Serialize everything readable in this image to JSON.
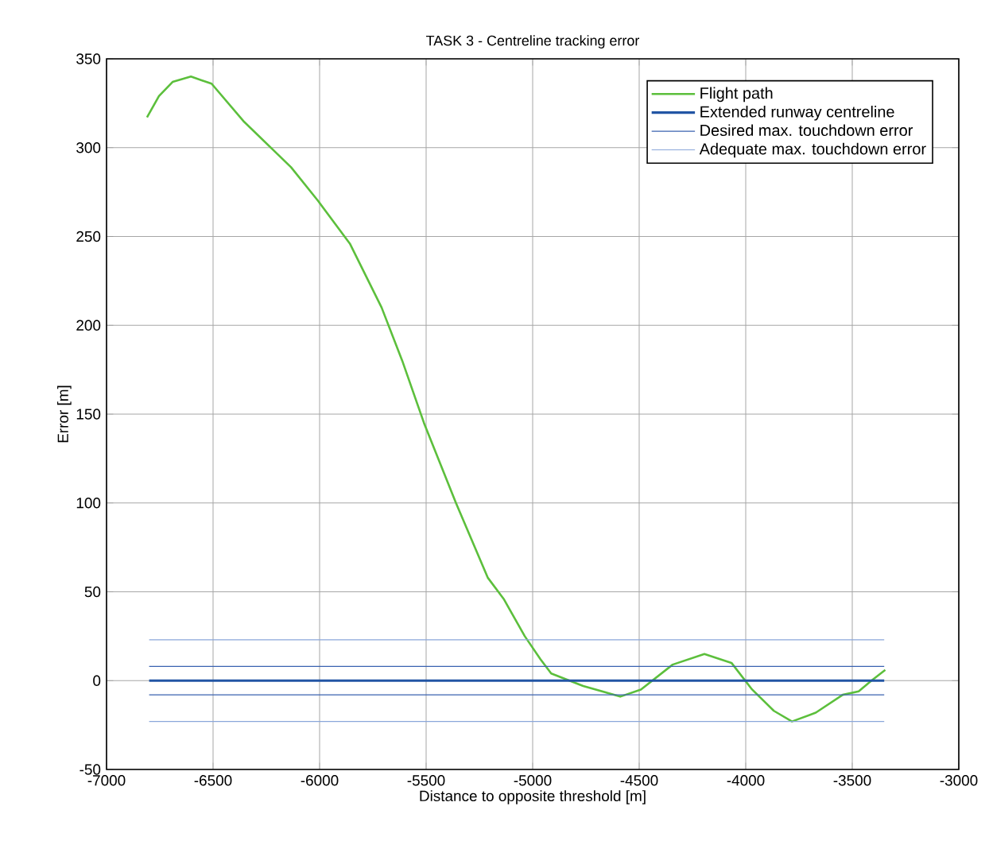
{
  "chart_data": {
    "type": "line",
    "title": "TASK 3 - Centreline tracking error",
    "xlabel": "Distance to opposite threshold [m]",
    "ylabel": "Error [m]",
    "xlim": [
      -7000,
      -3000
    ],
    "ylim": [
      -50,
      350
    ],
    "xticks": [
      -7000,
      -6500,
      -6000,
      -5500,
      -5000,
      -4500,
      -4000,
      -3500,
      -3000
    ],
    "yticks": [
      -50,
      0,
      50,
      100,
      150,
      200,
      250,
      300,
      350
    ],
    "grid": true,
    "legend": "top right",
    "marker": "none",
    "line_style": "solid",
    "series": [
      {
        "name": "Flight path",
        "color": "#5cbf3c",
        "x": [
          -6810,
          -6754,
          -6690,
          -6604,
          -6507,
          -6358,
          -6134,
          -6007,
          -5858,
          -5709,
          -5612,
          -5510,
          -5360,
          -5211,
          -5136,
          -5037,
          -4963,
          -4913,
          -4763,
          -4589,
          -4492,
          -4343,
          -4194,
          -4067,
          -3970,
          -3868,
          -3783,
          -3671,
          -3545,
          -3470,
          -3410,
          -3345
        ],
        "values": [
          317,
          329,
          337,
          340,
          336,
          315,
          289,
          270,
          246,
          210,
          180,
          145,
          100,
          58,
          46,
          25,
          12,
          4,
          -3,
          -9,
          -5,
          9,
          15,
          10,
          -5,
          -17,
          -23,
          -18,
          -8,
          -6,
          0,
          6
        ]
      },
      {
        "name": "Extended runway centreline",
        "color": "#2255a4",
        "x": [
          -6800,
          -3350
        ],
        "values": [
          0,
          0
        ]
      },
      {
        "name": "Desired max. touchdown error",
        "color": "#3a62b0",
        "x": [
          -6800,
          -3350
        ],
        "values": [
          8,
          8
        ]
      },
      {
        "name": "Adequate max. touchdown error",
        "color": "#8aa6da",
        "x": [
          -6800,
          -3350
        ],
        "values": [
          23,
          23
        ]
      },
      {
        "color": "#3a62b0",
        "x": [
          -6800,
          -3350
        ],
        "values": [
          -8,
          -8
        ]
      },
      {
        "color": "#8aa6da",
        "x": [
          -6800,
          -3350
        ],
        "values": [
          -23,
          -23
        ]
      }
    ]
  }
}
